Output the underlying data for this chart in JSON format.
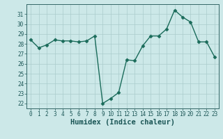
{
  "x": [
    0,
    1,
    2,
    3,
    4,
    5,
    6,
    7,
    8,
    9,
    10,
    11,
    12,
    13,
    14,
    15,
    16,
    17,
    18,
    19,
    20,
    21,
    22,
    23
  ],
  "y": [
    28.4,
    27.6,
    27.9,
    28.4,
    28.3,
    28.3,
    28.2,
    28.3,
    28.8,
    22.0,
    22.5,
    23.1,
    26.4,
    26.3,
    27.8,
    28.8,
    28.8,
    29.5,
    31.4,
    30.7,
    30.2,
    28.2,
    28.2,
    26.7
  ],
  "line_color": "#1a6b5a",
  "marker": "D",
  "markersize": 2.5,
  "linewidth": 1.0,
  "xlabel": "Humidex (Indice chaleur)",
  "ylabel": "",
  "ylim": [
    21.5,
    32.0
  ],
  "yticks": [
    22,
    23,
    24,
    25,
    26,
    27,
    28,
    29,
    30,
    31
  ],
  "xticks": [
    0,
    1,
    2,
    3,
    4,
    5,
    6,
    7,
    8,
    9,
    10,
    11,
    12,
    13,
    14,
    15,
    16,
    17,
    18,
    19,
    20,
    21,
    22,
    23
  ],
  "bg_color": "#cce8e8",
  "grid_color": "#aacccc",
  "tick_fontsize": 5.5,
  "xlabel_fontsize": 7.5
}
